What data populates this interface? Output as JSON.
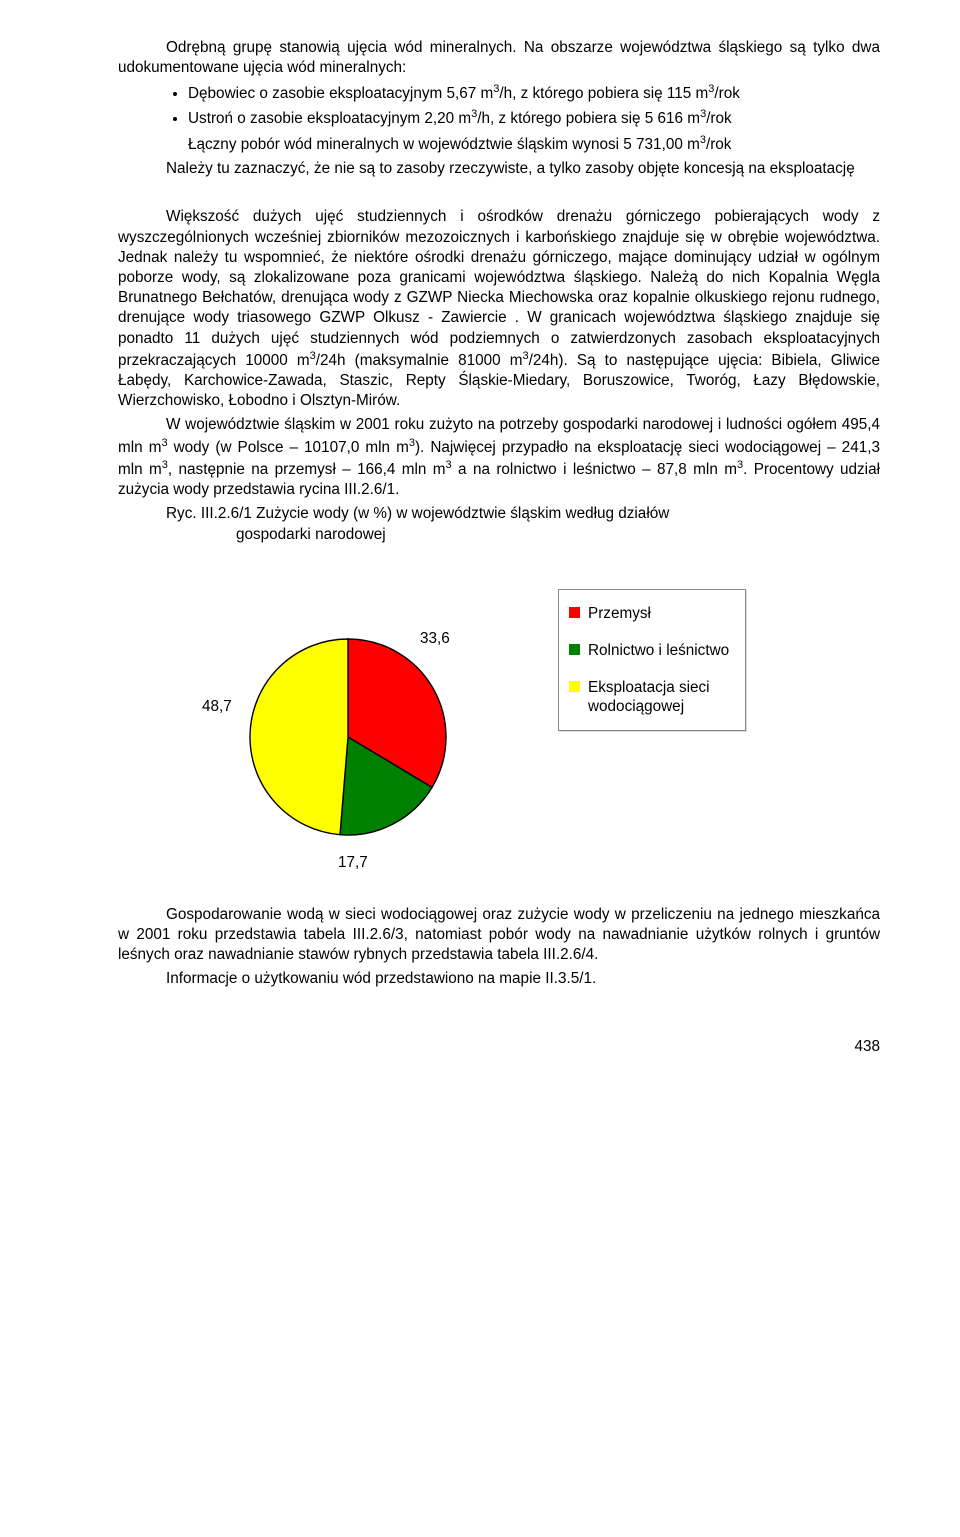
{
  "p1a": "Odrębną grupę stanowią ujęcia wód mineralnych. Na obszarze województwa śląskiego są tylko dwa udokumentowane ujęcia wód mineralnych:",
  "b1_pre": "Dębowiec o zasobie eksploatacyjnym 5,67 m",
  "b1_post": "/h, z którego pobiera się 115 m",
  "b1_end": "/rok",
  "b2_pre": "Ustroń o zasobie eksploatacyjnym 2,20 m",
  "b2_post": "/h, z którego pobiera się 5 616 m",
  "b2_end": "/rok",
  "p_sub_pre": "Łączny pobór wód mineralnych w województwie śląskim wynosi 5 731,00 m",
  "p_sub_end": "/rok",
  "p2": "Należy tu zaznaczyć, że nie są to zasoby rzeczywiste, a tylko zasoby objęte koncesją na eksploatację",
  "p3_a": "Większość dużych ujęć studziennych i ośrodków drenażu górniczego pobierających wody z wyszczególnionych wcześniej zbiorników mezozoicznych i karbońskiego znajduje się w obrębie województwa. Jednak należy tu wspomnieć, że niektóre ośrodki drenażu górniczego, mające dominujący udział w ogólnym poborze wody, są zlokalizowane poza granicami województwa śląskiego. Należą do nich Kopalnia Węgla Brunatnego Bełchatów, drenująca wody z GZWP Niecka Miechowska oraz kopalnie olkuskiego rejonu rudnego, drenujące wody triasowego GZWP Olkusz - Zawiercie . W granicach województwa śląskiego znajduje się ponadto 11 dużych ujęć studziennych wód podziemnych o zatwierdzonych zasobach eksploatacyjnych przekraczających 10000 m",
  "p3_b": "/24h (maksymalnie 81000 m",
  "p3_c": "/24h). Są to następujące ujęcia: Bibiela, Gliwice Łabędy, Karchowice-Zawada, Staszic, Repty Śląskie-Miedary, Boruszowice, Tworóg, Łazy Błędowskie, Wierzchowisko, Łobodno i Olsztyn-Mirów.",
  "p4_a": "W województwie śląskim w 2001 roku zużyto na potrzeby gospodarki narodowej i ludności ogółem 495,4 mln m",
  "p4_b": " wody (w Polsce – 10107,0 mln m",
  "p4_c": "). Najwięcej przypadło na eksploatację sieci wodociągowej – 241,3 mln m",
  "p4_d": ", następnie na przemysł – 166,4 mln m",
  "p4_e": " a na rolnictwo i leśnictwo – 87,8 mln m",
  "p4_f": ". Procentowy udział zużycia wody przedstawia rycina III.2.6/1.",
  "caption_l1": "Ryc. III.2.6/1 Zużycie wody (w %) w województwie śląskim według działów",
  "caption_l2": "gospodarki narodowej",
  "chart": {
    "type": "pie",
    "values": [
      33.6,
      17.7,
      48.7
    ],
    "labels": [
      "33,6",
      "17,7",
      "48,7"
    ],
    "colors": [
      "#ff0000",
      "#008000",
      "#ffff00"
    ],
    "border": "#000000",
    "bg": "#ffffff"
  },
  "legend": {
    "items": [
      {
        "label": "Przemysł",
        "color": "#ff0000"
      },
      {
        "label": "Rolnictwo i leśnictwo",
        "color": "#008000"
      },
      {
        "label": "Eksploatacja sieci wodociągowej",
        "color": "#ffff00"
      }
    ]
  },
  "p5": "Gospodarowanie wodą w sieci wodociągowej oraz zużycie wody w przeliczeniu na jednego mieszkańca w 2001 roku przedstawia tabela III.2.6/3, natomiast pobór wody na nawadnianie użytków rolnych i gruntów leśnych oraz nawadnianie stawów rybnych przedstawia tabela III.2.6/4.",
  "p6": "Informacje o użytkowaniu wód przedstawiono na mapie II.3.5/1.",
  "page_number": "438",
  "sup3": "3"
}
